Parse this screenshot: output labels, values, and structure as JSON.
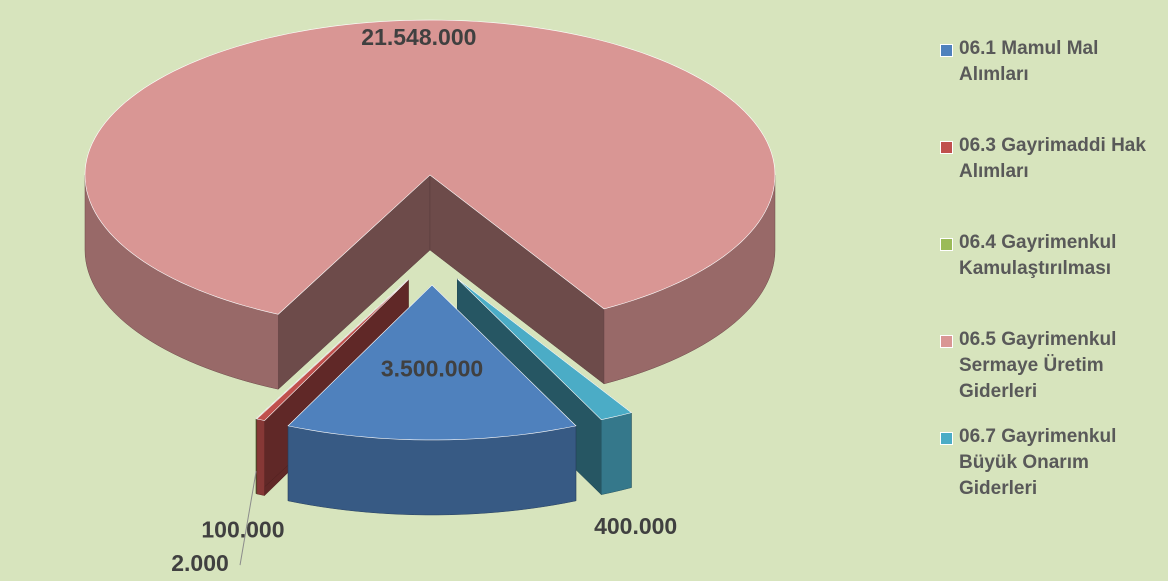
{
  "chart_data": {
    "type": "pie",
    "categories": [
      "06.1 Mamul Mal Alımları",
      "06.3 Gayrimaddi Hak Alımları",
      "06.4 Gayrimenkul Kamulaştırılması",
      "06.5 Gayrimenkul Sermaye Üretim Giderleri",
      "06.7 Gayrimenkul Büyük Onarım Giderleri"
    ],
    "values": [
      3500000,
      100000,
      2000,
      21548000,
      400000
    ],
    "value_labels": [
      "3.500.000",
      "100.000",
      "2.000",
      "21.548.000",
      "400.000"
    ],
    "colors": [
      "#4f81bd",
      "#c0504d",
      "#9bbb59",
      "#d99694",
      "#4bacc6"
    ],
    "legend": "right"
  }
}
